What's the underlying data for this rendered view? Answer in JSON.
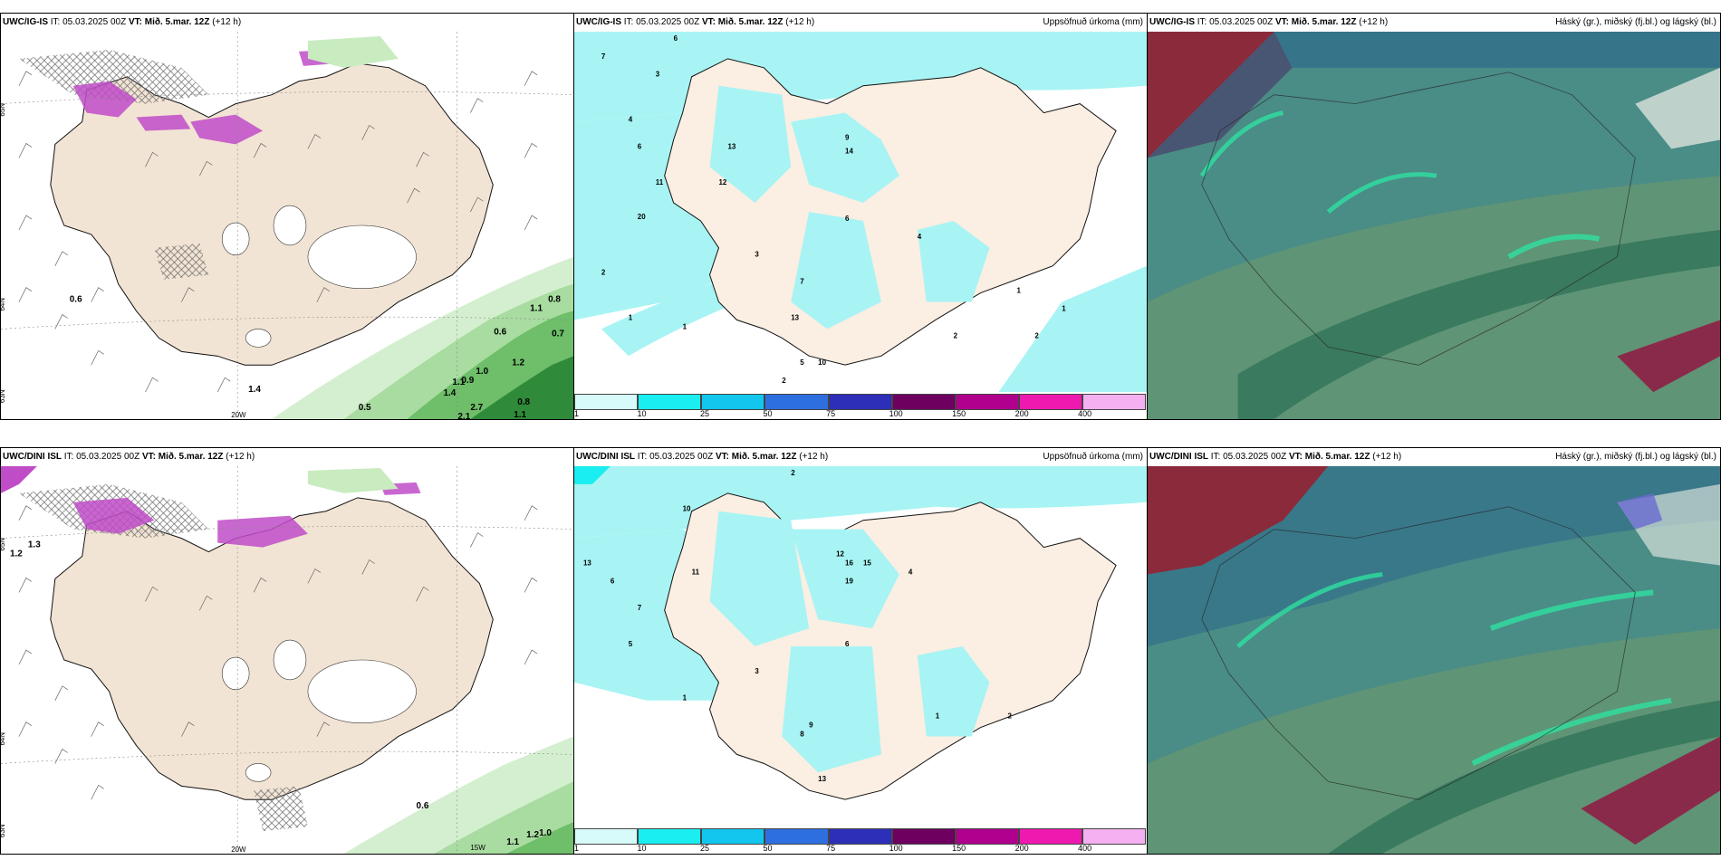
{
  "panels": [
    {
      "model": "UWC/IG-IS",
      "it": "IT: 05.03.2025 00Z",
      "vt_label": "VT:",
      "vt": "Mið. 5.mar. 12Z",
      "lead": "(+12 h)",
      "right": ""
    },
    {
      "model": "UWC/IG-IS",
      "it": "IT: 05.03.2025 00Z",
      "vt_label": "VT:",
      "vt": "Mið. 5.mar. 12Z",
      "lead": "(+12 h)",
      "right": "Uppsöfnuð úrkoma (mm)"
    },
    {
      "model": "UWC/IG-IS",
      "it": "IT: 05.03.2025 00Z",
      "vt_label": "VT:",
      "vt": "Mið. 5.mar. 12Z",
      "lead": "(+12 h)",
      "right": "Háský (gr.), miðský (fj.bl.) og lágský (bl.)"
    },
    {
      "model": "UWC/DINI ISL",
      "it": "IT: 05.03.2025 00Z",
      "vt_label": "VT:",
      "vt": "Mið. 5.mar. 12Z",
      "lead": "(+12 h)",
      "right": ""
    },
    {
      "model": "UWC/DINI ISL",
      "it": "IT: 05.03.2025 00Z",
      "vt_label": "VT:",
      "vt": "Mið. 5.mar. 12Z",
      "lead": "(+12 h)",
      "right": "Uppsöfnuð úrkoma (mm)"
    },
    {
      "model": "UWC/DINI ISL",
      "it": "IT: 05.03.2025 00Z",
      "vt_label": "VT:",
      "vt": "Mið. 5.mar. 12Z",
      "lead": "(+12 h)",
      "right": "Háský (gr.), miðský (fj.bl.) og lágský (bl.)"
    }
  ],
  "colorbar": {
    "ticks": [
      "1",
      "10",
      "25",
      "50",
      "75",
      "100",
      "150",
      "200",
      "400"
    ],
    "colors": [
      "#d7fbfb",
      "#1aeef0",
      "#12c6ee",
      "#2e6fe0",
      "#2e2fb8",
      "#6e0060",
      "#b0008e",
      "#ee1ab0",
      "#f4b0f0"
    ]
  },
  "labels": {
    "p1": [
      "65N",
      "64N",
      "63N",
      "20W",
      "0.6",
      "1.4",
      "0.5",
      "1.1",
      "0.8",
      "0.7",
      "2.1",
      "2.7",
      "1.1",
      "1.1",
      "0.8",
      "1.2",
      "0.9",
      "1.4",
      "1.1",
      "1.0",
      "0.6"
    ],
    "p2": [
      "6",
      "2",
      "7",
      "5",
      "3",
      "4",
      "10",
      "13",
      "12",
      "11",
      "8",
      "20",
      "14",
      "9",
      "1",
      "6",
      "2",
      "7",
      "13",
      "10",
      "5",
      "4",
      "2",
      "1",
      "3"
    ],
    "p4": [
      "65N",
      "64N",
      "63N",
      "20W",
      "15W",
      "0.6",
      "1.1",
      "1.2",
      "1.0",
      "1.3",
      "1.2"
    ],
    "p5": [
      "2",
      "10",
      "13",
      "6",
      "11",
      "19",
      "16",
      "15",
      "12",
      "7",
      "5",
      "4",
      "3",
      "8",
      "1",
      "9",
      "2",
      "13",
      "6",
      "1"
    ]
  }
}
